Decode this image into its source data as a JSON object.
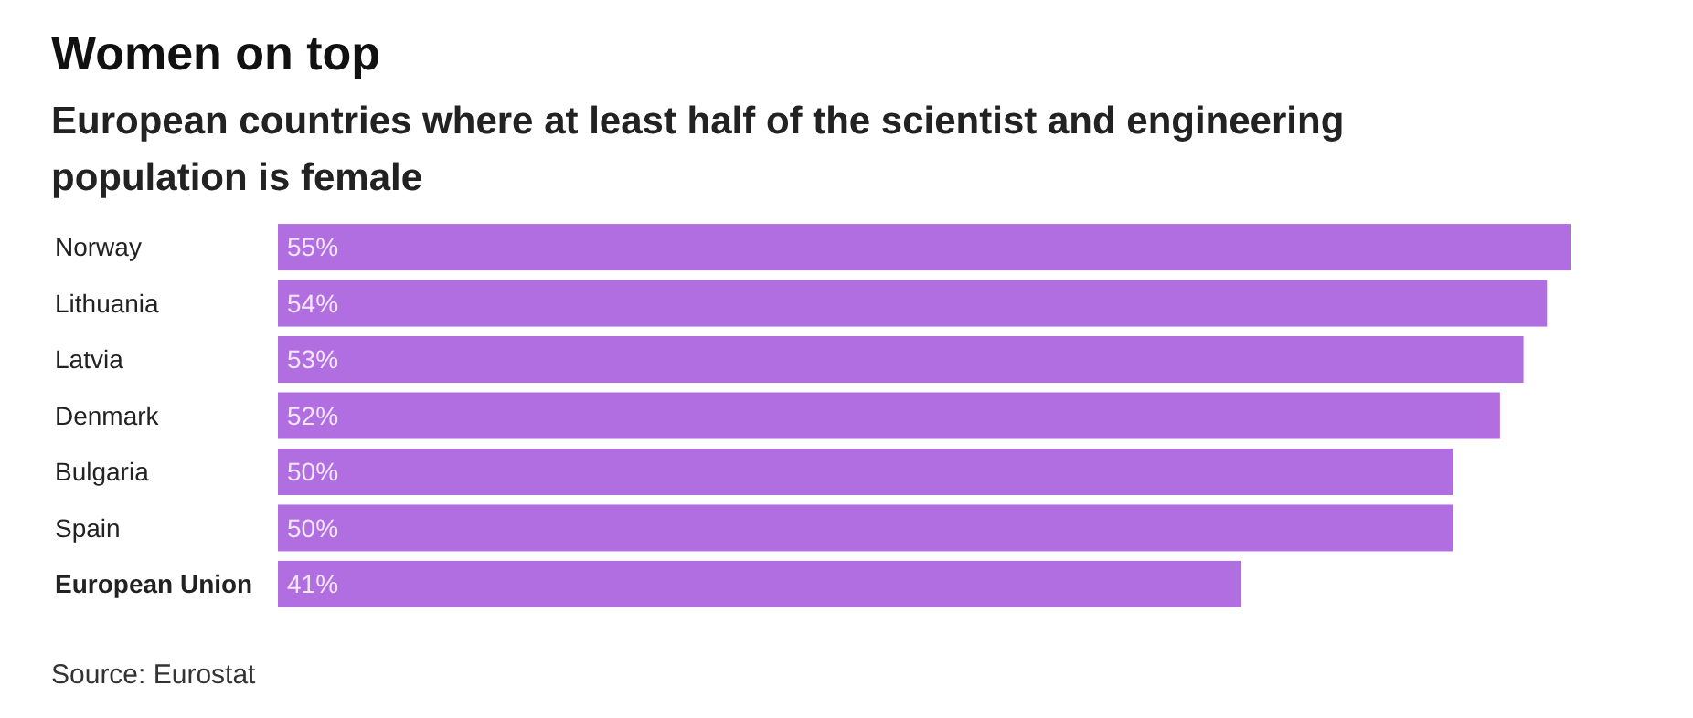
{
  "chart_data": {
    "type": "bar",
    "orientation": "horizontal",
    "title": "Women on top",
    "subtitle": "European countries where at least half of the scientist and engineering population is female",
    "categories": [
      "Norway",
      "Lithuania",
      "Latvia",
      "Denmark",
      "Bulgaria",
      "Spain",
      "European Union"
    ],
    "values": [
      55,
      54,
      53,
      52,
      50,
      50,
      41
    ],
    "value_labels": [
      "55%",
      "54%",
      "53%",
      "52%",
      "50%",
      "50%",
      "41%"
    ],
    "color": "#b06ee0",
    "annotations": [
      "Source: Eurostat"
    ]
  }
}
